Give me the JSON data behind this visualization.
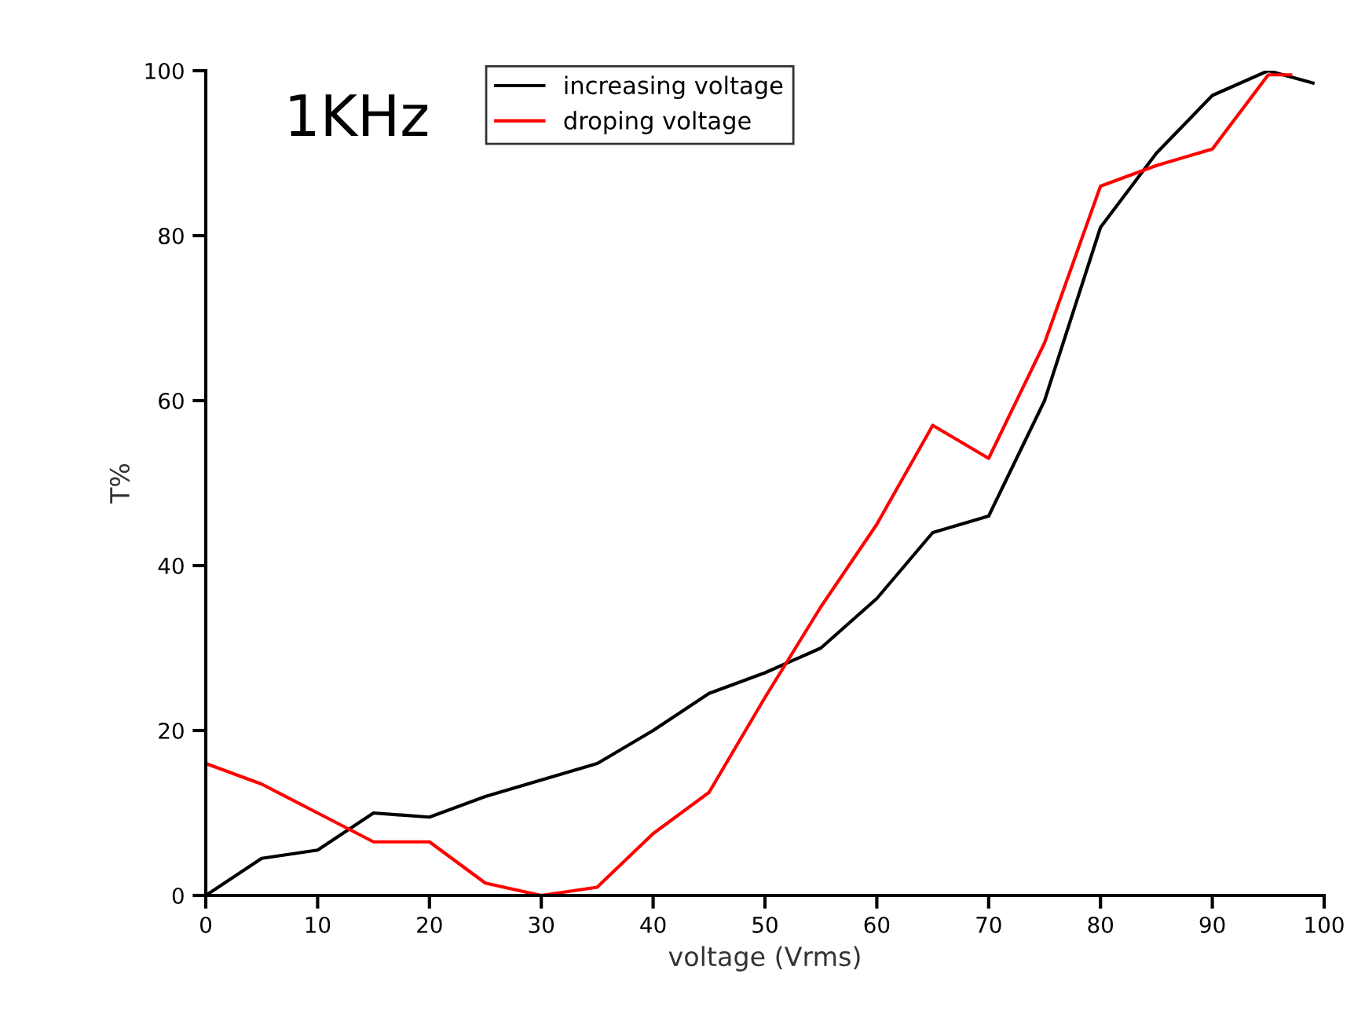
{
  "chart_data": {
    "type": "line",
    "xlabel": "voltage (Vrms)",
    "ylabel": "T%",
    "annotations": [
      "1KHz"
    ],
    "series": [
      {
        "name": "increasing voltage",
        "color": "#000000",
        "x": [
          0,
          5,
          10,
          15,
          20,
          25,
          30,
          35,
          40,
          45,
          50,
          55,
          60,
          65,
          70,
          75,
          80,
          85,
          90,
          95,
          99
        ],
        "values": [
          0,
          4.5,
          5.5,
          10,
          9.5,
          12,
          14,
          16,
          20,
          24.5,
          27,
          30,
          36,
          44,
          46,
          60,
          81,
          90,
          97,
          100,
          98.5
        ]
      },
      {
        "name": "droping voltage",
        "color": "#ff0000",
        "x": [
          0,
          5,
          10,
          15,
          20,
          25,
          30,
          35,
          40,
          45,
          50,
          55,
          60,
          65,
          70,
          75,
          80,
          85,
          90,
          95,
          97
        ],
        "values": [
          16,
          13.5,
          10,
          6.5,
          6.5,
          1.5,
          0,
          1,
          7.5,
          12.5,
          24,
          35,
          45,
          57,
          53,
          67,
          86,
          88.5,
          90.5,
          99.5,
          99.5
        ]
      }
    ],
    "xlim": [
      0,
      100
    ],
    "ylim": [
      0,
      100
    ],
    "xticks": [
      0,
      10,
      20,
      30,
      40,
      50,
      60,
      70,
      80,
      90,
      100
    ],
    "yticks": [
      0,
      20,
      40,
      60,
      80,
      100
    ],
    "grid": false,
    "legend": "top"
  }
}
